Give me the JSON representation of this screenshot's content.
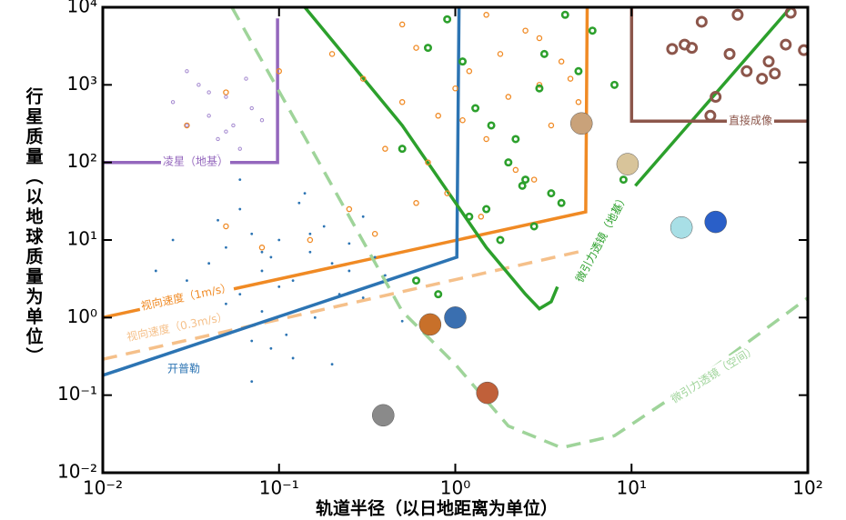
{
  "chart_data": {
    "type": "scatter",
    "xlabel": "轨道半径（以日地距离为单位）",
    "ylabel": "行星质量（以地球质量为单位）",
    "log_x": true,
    "log_y": true,
    "grid": false,
    "xlim": [
      0.01,
      100
    ],
    "ylim": [
      0.01,
      10000
    ],
    "xticks": [
      {
        "value": 0.01,
        "label": "10⁻²"
      },
      {
        "value": 0.1,
        "label": "10⁻¹"
      },
      {
        "value": 1,
        "label": "10⁰"
      },
      {
        "value": 10,
        "label": "10¹"
      },
      {
        "value": 100,
        "label": "10²"
      }
    ],
    "yticks": [
      {
        "value": 0.01,
        "label": "10⁻²"
      },
      {
        "value": 0.1,
        "label": "10⁻¹"
      },
      {
        "value": 1,
        "label": "10⁰"
      },
      {
        "value": 10,
        "label": "10¹"
      },
      {
        "value": 100,
        "label": "10²"
      },
      {
        "value": 1000,
        "label": "10³"
      },
      {
        "value": 10000,
        "label": "10⁴"
      }
    ],
    "series": [
      {
        "marker": "dot",
        "color": "#2c74b3",
        "x": [
          0.03,
          0.04,
          0.05,
          0.06,
          0.07,
          0.08,
          0.09,
          0.1,
          0.12,
          0.15,
          0.18,
          0.2,
          0.25,
          0.3,
          0.05,
          0.06,
          0.08,
          0.1,
          0.13,
          0.16,
          0.04,
          0.07,
          0.11,
          0.14,
          0.22,
          0.35,
          0.02,
          0.025,
          0.045,
          0.09,
          0.12,
          0.2,
          0.3,
          0.4,
          0.5,
          0.06,
          0.08,
          0.15,
          0.25,
          0.07
        ],
        "values": [
          3,
          5,
          8,
          2,
          12,
          4,
          6,
          10,
          3,
          7,
          15,
          5,
          9,
          20,
          1.5,
          25,
          1.2,
          2.5,
          30,
          1,
          0.8,
          0.5,
          0.6,
          40,
          2,
          6,
          4,
          10,
          18,
          0.4,
          0.3,
          0.25,
          1.8,
          3.5,
          0.9,
          60,
          7,
          12,
          4,
          0.15
        ]
      },
      {
        "marker": "ring",
        "color": "#f08a24",
        "x": [
          0.03,
          0.05,
          0.1,
          0.2,
          0.3,
          0.5,
          0.6,
          0.8,
          1,
          1.2,
          1.5,
          2,
          2.5,
          3,
          4,
          5,
          0.4,
          0.7,
          1.1,
          1.8,
          2.2,
          3.5,
          4.5,
          0.9,
          1.4,
          2.8,
          0.05,
          0.08,
          0.15,
          0.25,
          0.5,
          1.5,
          3,
          0.35,
          0.6
        ],
        "values": [
          300,
          800,
          1500,
          2500,
          1200,
          600,
          3000,
          400,
          900,
          1500,
          200,
          700,
          5000,
          1000,
          2000,
          600,
          150,
          100,
          350,
          2500,
          80,
          300,
          1200,
          40,
          20,
          60,
          15,
          8,
          10,
          25,
          6000,
          8000,
          4000,
          12,
          30
        ]
      },
      {
        "marker": "ring-bold",
        "color": "#2ca02c",
        "x": [
          0.5,
          0.7,
          0.9,
          1.1,
          1.3,
          1.6,
          2,
          2.5,
          3,
          3.5,
          4,
          5,
          6,
          8,
          1.2,
          1.8,
          2.2,
          2.8,
          3.2,
          0.6,
          0.8,
          1.5,
          2.4,
          4.2,
          9
        ],
        "values": [
          150,
          3000,
          7000,
          2000,
          500,
          300,
          100,
          60,
          900,
          40,
          30,
          1500,
          5000,
          1000,
          20,
          10,
          200,
          15,
          2500,
          3,
          2,
          25,
          50,
          8000,
          60
        ]
      },
      {
        "marker": "ring-big",
        "color": "#8c564b",
        "x": [
          17,
          22,
          25,
          30,
          36,
          45,
          55,
          65,
          80,
          95,
          28,
          40,
          60,
          20,
          75
        ],
        "values": [
          2900,
          3000,
          6500,
          700,
          2500,
          1500,
          1200,
          1400,
          8500,
          2800,
          400,
          8000,
          2000,
          3300,
          3300
        ]
      },
      {
        "marker": "ring-small",
        "color": "#a58ad0",
        "x": [
          0.025,
          0.03,
          0.035,
          0.04,
          0.045,
          0.05,
          0.055,
          0.06,
          0.07,
          0.03,
          0.04,
          0.05,
          0.065,
          0.08,
          0.045
        ],
        "values": [
          600,
          300,
          1000,
          400,
          200,
          700,
          300,
          150,
          500,
          1500,
          800,
          250,
          1200,
          350,
          120
        ]
      },
      {
        "marker": "planet",
        "colors": [
          "#8a8a8a",
          "#c8702a",
          "#3a6fb0",
          "#c0603a",
          "#c9a27a",
          "#d8c49a",
          "#a8dfe6",
          "#2a5fc8"
        ],
        "x": [
          0.39,
          0.72,
          1,
          1.52,
          5.2,
          9.5,
          19.2,
          30
        ],
        "values": [
          0.055,
          0.815,
          1,
          0.107,
          318,
          95,
          14.5,
          17.1
        ]
      },
      {
        "name": "凌星（地基）",
        "marker": "line",
        "color": "#9467bd",
        "dash": false,
        "x": [
          0.01,
          0.098,
          0.098
        ],
        "values": [
          100,
          100,
          7200
        ]
      },
      {
        "name": "视向速度（1m/s）",
        "marker": "line",
        "color": "#f08a24",
        "dash": false,
        "x": [
          0.01,
          5.5,
          5.6
        ],
        "values": [
          1,
          23,
          10000
        ]
      },
      {
        "name": "视向速度（0.3m/s）",
        "marker": "line",
        "color": "#f5c08a",
        "dash": true,
        "x": [
          0.01,
          5.5
        ],
        "values": [
          0.29,
          7.4
        ]
      },
      {
        "name": "开普勒",
        "marker": "line",
        "color": "#2c74b3",
        "dash": false,
        "x": [
          0.01,
          1.02,
          1.05
        ],
        "values": [
          0.18,
          6,
          10000
        ]
      },
      {
        "name": "微引力透镜（地基）",
        "marker": "line",
        "color": "#2ca02c",
        "dash": false,
        "x": [
          0.14,
          0.5,
          1.5,
          2.5,
          3.0,
          3.5,
          3.8,
          null,
          10.5,
          80
        ],
        "values": [
          10000,
          300,
          8,
          2,
          1.3,
          1.6,
          2.5,
          null,
          50,
          10000
        ]
      },
      {
        "name": "微引力透镜（空间）",
        "marker": "line",
        "color": "#9fd49a",
        "dash": true,
        "x": [
          0.054,
          0.2,
          0.5,
          1,
          2,
          4,
          8,
          20,
          100
        ],
        "values": [
          10000,
          50,
          1.2,
          0.25,
          0.04,
          0.021,
          0.03,
          0.12,
          1.8
        ]
      },
      {
        "name": "直接成像",
        "marker": "line",
        "color": "#8c564b",
        "dash": false,
        "x": [
          10,
          10,
          100
        ],
        "values": [
          10000,
          340,
          340
        ]
      }
    ]
  }
}
